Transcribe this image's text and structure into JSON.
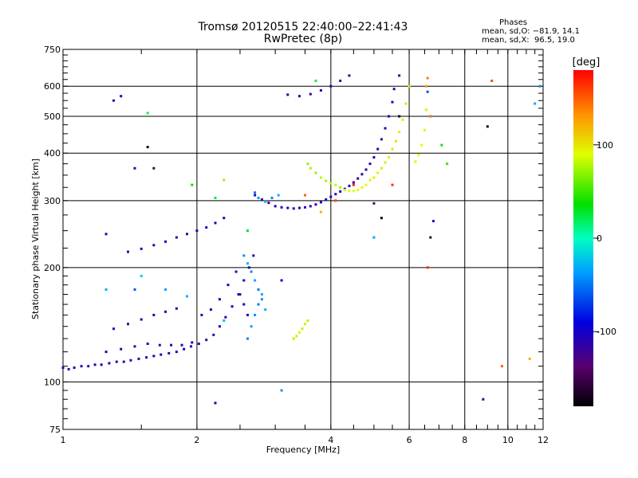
{
  "chart_data": {
    "type": "scatter",
    "title": "Tromsø 20120515 22:40:00–22:41:43",
    "subtitle": "RwPretec (8p)",
    "xlabel": "Frequency [MHz]",
    "ylabel": "Stationary phase Virtual Height [km]",
    "x_scale": "log",
    "y_scale": "log",
    "xlim": [
      1,
      12
    ],
    "ylim": [
      75,
      750
    ],
    "grid": true,
    "x_ticks": [
      1,
      2,
      4,
      6,
      8,
      10,
      12
    ],
    "y_ticks": [
      75,
      100,
      200,
      300,
      400,
      500,
      600,
      750
    ],
    "stats_title": "Phases",
    "stats": [
      "mean, sd,O: −81.9, 14.1",
      "mean, sd,X:  96.5, 19.0"
    ],
    "colorbar": {
      "label": "[deg]",
      "ticks": [
        100,
        0,
        -100
      ],
      "range": [
        -180,
        180
      ]
    },
    "series": [
      {
        "points": [
          [
            1.0,
            109,
            -110
          ],
          [
            1.03,
            108,
            -112
          ],
          [
            1.06,
            109,
            -108
          ],
          [
            1.1,
            110,
            -110
          ],
          [
            1.14,
            110,
            -115
          ],
          [
            1.18,
            111,
            -112
          ],
          [
            1.22,
            111,
            -110
          ],
          [
            1.27,
            112,
            -108
          ],
          [
            1.32,
            113,
            -112
          ],
          [
            1.37,
            113,
            -110
          ],
          [
            1.42,
            114,
            -115
          ],
          [
            1.48,
            115,
            -112
          ],
          [
            1.54,
            116,
            -108
          ],
          [
            1.6,
            117,
            -110
          ],
          [
            1.66,
            118,
            -112
          ],
          [
            1.73,
            119,
            -115
          ],
          [
            1.8,
            120,
            -110
          ],
          [
            1.87,
            122,
            -108
          ],
          [
            1.94,
            124,
            -112
          ],
          [
            2.02,
            126,
            -110
          ],
          [
            2.1,
            129,
            -115
          ],
          [
            2.18,
            133,
            -112
          ],
          [
            2.25,
            140,
            -108
          ],
          [
            2.32,
            148,
            -110
          ],
          [
            2.4,
            158,
            -112
          ],
          [
            2.48,
            170,
            -115
          ],
          [
            2.55,
            185,
            -110
          ],
          [
            2.62,
            200,
            -108
          ],
          [
            2.68,
            215,
            -112
          ],
          [
            1.25,
            120,
            -105
          ],
          [
            1.35,
            122,
            -108
          ],
          [
            1.45,
            124,
            -110
          ],
          [
            1.55,
            126,
            -112
          ],
          [
            1.65,
            125,
            -115
          ],
          [
            1.75,
            125,
            -110
          ],
          [
            1.85,
            125,
            -108
          ],
          [
            1.95,
            127,
            -112
          ],
          [
            2.05,
            150,
            -110
          ],
          [
            2.15,
            155,
            -112
          ],
          [
            2.25,
            165,
            -108
          ],
          [
            2.35,
            180,
            -110
          ],
          [
            2.45,
            195,
            -115
          ],
          [
            2.5,
            170,
            -112
          ],
          [
            2.55,
            160,
            -108
          ],
          [
            2.6,
            150,
            -110
          ],
          [
            1.3,
            138,
            -112
          ],
          [
            1.4,
            142,
            -110
          ],
          [
            1.5,
            146,
            -108
          ],
          [
            1.6,
            150,
            -112
          ],
          [
            1.7,
            153,
            -110
          ],
          [
            1.8,
            156,
            -115
          ],
          [
            1.4,
            220,
            -110
          ],
          [
            1.5,
            224,
            -112
          ],
          [
            1.6,
            229,
            -108
          ],
          [
            1.7,
            234,
            -110
          ],
          [
            1.8,
            240,
            -112
          ],
          [
            1.9,
            245,
            -115
          ],
          [
            2.0,
            250,
            -110
          ],
          [
            2.1,
            255,
            -108
          ],
          [
            2.2,
            262,
            -112
          ],
          [
            2.3,
            270,
            -110
          ],
          [
            3.0,
            290,
            -112
          ],
          [
            3.1,
            288,
            -110
          ],
          [
            3.2,
            287,
            -108
          ],
          [
            3.3,
            286,
            -112
          ],
          [
            3.4,
            287,
            -110
          ],
          [
            3.5,
            288,
            -115
          ],
          [
            3.6,
            290,
            -112
          ],
          [
            3.7,
            293,
            -108
          ],
          [
            3.8,
            297,
            -110
          ],
          [
            3.9,
            302,
            -112
          ],
          [
            4.0,
            307,
            -115
          ],
          [
            4.1,
            312,
            -110
          ],
          [
            4.2,
            317,
            -108
          ],
          [
            4.3,
            322,
            -112
          ],
          [
            4.4,
            328,
            -110
          ],
          [
            4.5,
            335,
            -112
          ],
          [
            4.6,
            343,
            -115
          ],
          [
            4.7,
            352,
            -110
          ],
          [
            4.8,
            362,
            -108
          ],
          [
            4.9,
            375,
            -112
          ],
          [
            5.0,
            390,
            -110
          ],
          [
            5.1,
            410,
            -112
          ],
          [
            5.2,
            435,
            -115
          ],
          [
            5.3,
            465,
            -110
          ],
          [
            5.4,
            500,
            -108
          ],
          [
            5.5,
            545,
            -112
          ],
          [
            5.55,
            590,
            -110
          ],
          [
            2.7,
            310,
            -120
          ],
          [
            2.8,
            302,
            -118
          ],
          [
            2.9,
            296,
            -122
          ],
          [
            3.2,
            570,
            -112
          ],
          [
            3.4,
            565,
            -110
          ],
          [
            3.6,
            572,
            -112
          ],
          [
            3.8,
            585,
            -108
          ],
          [
            4.0,
            600,
            -110
          ],
          [
            4.2,
            620,
            -112
          ],
          [
            4.4,
            640,
            -115
          ],
          [
            1.3,
            550,
            -112
          ],
          [
            1.35,
            565,
            -108
          ],
          [
            1.25,
            245,
            -110
          ],
          [
            1.45,
            365,
            -112
          ],
          [
            5.7,
            640,
            -110
          ],
          [
            8.8,
            90,
            -110
          ],
          [
            2.2,
            88,
            -108
          ]
        ]
      },
      {
        "points": [
          [
            3.3,
            130,
            80
          ],
          [
            3.35,
            132,
            82
          ],
          [
            3.4,
            135,
            85
          ],
          [
            3.45,
            138,
            80
          ],
          [
            3.5,
            142,
            82
          ],
          [
            3.55,
            145,
            78
          ],
          [
            3.55,
            375,
            70
          ],
          [
            3.6,
            365,
            75
          ],
          [
            3.7,
            355,
            72
          ],
          [
            3.8,
            345,
            80
          ],
          [
            3.9,
            338,
            75
          ],
          [
            4.0,
            333,
            78
          ],
          [
            4.1,
            330,
            80
          ],
          [
            4.2,
            325,
            72
          ],
          [
            4.3,
            320,
            85
          ],
          [
            4.4,
            318,
            88
          ],
          [
            4.5,
            318,
            90
          ],
          [
            4.6,
            320,
            92
          ],
          [
            4.7,
            325,
            95
          ],
          [
            4.8,
            330,
            92
          ],
          [
            4.9,
            340,
            96
          ],
          [
            5.0,
            345,
            98
          ],
          [
            5.1,
            355,
            95
          ],
          [
            5.2,
            365,
            100
          ],
          [
            5.3,
            378,
            102
          ],
          [
            5.4,
            390,
            98
          ],
          [
            5.5,
            410,
            100
          ],
          [
            5.6,
            430,
            102
          ],
          [
            5.7,
            455,
            98
          ],
          [
            5.8,
            490,
            100
          ],
          [
            5.9,
            540,
            102
          ],
          [
            6.0,
            600,
            98
          ],
          [
            6.2,
            380,
            95
          ],
          [
            6.3,
            395,
            90
          ],
          [
            6.4,
            420,
            92
          ],
          [
            6.5,
            460,
            95
          ],
          [
            6.55,
            520,
            98
          ],
          [
            6.6,
            580,
            100
          ],
          [
            6.55,
            600,
            130
          ],
          [
            6.6,
            630,
            140
          ],
          [
            6.7,
            500,
            145
          ],
          [
            3.5,
            310,
            150
          ],
          [
            4.1,
            300,
            160
          ],
          [
            4.5,
            330,
            170
          ],
          [
            5.5,
            330,
            165
          ],
          [
            6.6,
            200,
            165
          ],
          [
            9.2,
            620,
            155
          ],
          [
            9.7,
            110,
            150
          ],
          [
            11.2,
            115,
            120
          ],
          [
            3.8,
            280,
            120
          ],
          [
            2.3,
            340,
            110
          ]
        ]
      },
      {
        "points": [
          [
            2.55,
            215,
            -40
          ],
          [
            2.6,
            205,
            -30
          ],
          [
            2.65,
            195,
            -45
          ],
          [
            2.7,
            185,
            -35
          ],
          [
            2.75,
            175,
            -50
          ],
          [
            2.8,
            165,
            -40
          ],
          [
            2.85,
            155,
            -30
          ],
          [
            2.6,
            130,
            -45
          ],
          [
            2.65,
            140,
            -35
          ],
          [
            2.7,
            150,
            -40
          ],
          [
            2.75,
            160,
            -50
          ],
          [
            2.8,
            170,
            -30
          ],
          [
            2.75,
            305,
            -40
          ],
          [
            2.85,
            298,
            -35
          ],
          [
            2.95,
            305,
            -45
          ],
          [
            3.05,
            310,
            -30
          ],
          [
            2.7,
            315,
            -50
          ],
          [
            1.25,
            175,
            -30
          ],
          [
            1.5,
            190,
            -20
          ],
          [
            1.7,
            175,
            -35
          ],
          [
            1.9,
            168,
            -30
          ],
          [
            2.3,
            145,
            -25
          ],
          [
            11.8,
            600,
            -40
          ],
          [
            11.5,
            540,
            -30
          ],
          [
            5.0,
            240,
            -35
          ],
          [
            3.1,
            95,
            -40
          ],
          [
            6.6,
            580,
            -60
          ]
        ]
      },
      {
        "points": [
          [
            3.7,
            620,
            20
          ],
          [
            2.6,
            250,
            30
          ],
          [
            7.1,
            420,
            40
          ],
          [
            7.3,
            375,
            50
          ],
          [
            1.55,
            510,
            20
          ],
          [
            1.95,
            330,
            35
          ],
          [
            2.2,
            305,
            25
          ]
        ]
      },
      {
        "points": [
          [
            1.55,
            415,
            -170
          ],
          [
            5.2,
            270,
            -175
          ],
          [
            6.7,
            240,
            -160
          ],
          [
            9.0,
            470,
            -170
          ],
          [
            5.7,
            500,
            -165
          ]
        ]
      },
      {
        "points": [
          [
            6.8,
            265,
            -85
          ],
          [
            1.6,
            365,
            -150
          ],
          [
            1.45,
            175,
            -60
          ],
          [
            3.1,
            185,
            -90
          ],
          [
            5.0,
            295,
            -140
          ]
        ]
      }
    ]
  }
}
